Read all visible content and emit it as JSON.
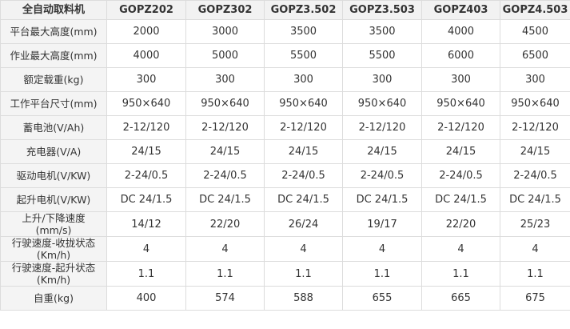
{
  "table": {
    "header": [
      "全自动取料机",
      "GOPZ202",
      "GOPZ302",
      "GOPZ3.502",
      "GOPZ3.503",
      "GOPZ403",
      "GOPZ4.503"
    ],
    "rows": [
      [
        "平台最大高度(mm)",
        "2000",
        "3000",
        "3500",
        "3500",
        "4000",
        "4500"
      ],
      [
        "作业最大高度(mm)",
        "4000",
        "5000",
        "5500",
        "5500",
        "6000",
        "6500"
      ],
      [
        "额定载重(kg)",
        "300",
        "300",
        "300",
        "300",
        "300",
        "300"
      ],
      [
        "工作平台尺寸(mm)",
        "950×640",
        "950×640",
        "950×640",
        "950×640",
        "950×640",
        "950×640"
      ],
      [
        "蓄电池(V/Ah)",
        "2-12/120",
        "2-12/120",
        "2-12/120",
        "2-12/120",
        "2-12/120",
        "2-12/120"
      ],
      [
        "充电器(V/A)",
        "24/15",
        "24/15",
        "24/15",
        "24/15",
        "24/15",
        "24/15"
      ],
      [
        "驱动电机(V/KW)",
        "2-24/0.5",
        "2-24/0.5",
        "2-24/0.5",
        "2-24/0.5",
        "2-24/0.5",
        "2-24/0.5"
      ],
      [
        "起升电机(V/KW)",
        "DC 24/1.5",
        "DC 24/1.5",
        "DC 24/1.5",
        "DC 24/1.5",
        "DC 24/1.5",
        "DC 24/1.5"
      ],
      [
        "上升/下降速度\n(mm/s)",
        "14/12",
        "22/20",
        "26/24",
        "19/17",
        "22/20",
        "25/23"
      ],
      [
        "行驶速度-收拢状态\n(Km/h)",
        "4",
        "4",
        "4",
        "4",
        "4",
        "4"
      ],
      [
        "行驶速度-起升状态\n(Km/h)",
        "1.1",
        "1.1",
        "1.1",
        "1.1",
        "1.1",
        "1.1"
      ],
      [
        "自重(kg)",
        "400",
        "574",
        "588",
        "655",
        "665",
        "675"
      ]
    ]
  }
}
